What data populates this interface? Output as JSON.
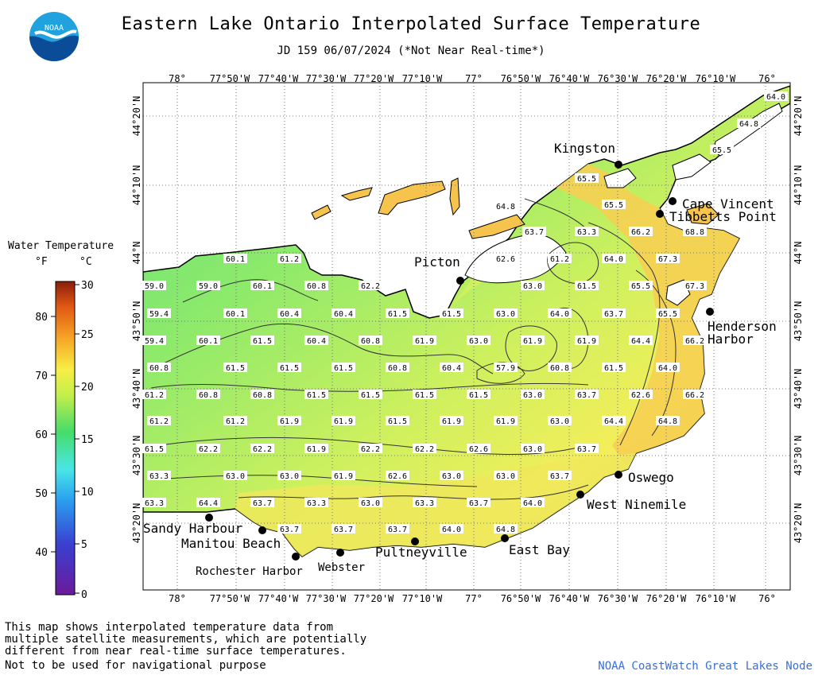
{
  "header": {
    "title": "Eastern Lake Ontario Interpolated Surface Temperature",
    "subtitle": "JD 159 06/07/2024 (*Not Near Real-time*)",
    "logo_text": "NOAA"
  },
  "legend": {
    "title": "Water Temperature",
    "unit_f": "°F",
    "unit_c": "°C",
    "f_ticks": [
      "80",
      "70",
      "60",
      "50",
      "40"
    ],
    "c_ticks": [
      "30",
      "25",
      "20",
      "15",
      "10",
      "5",
      "0"
    ]
  },
  "axes": {
    "lon_labels": [
      "78°",
      "77°50'W",
      "77°40'W",
      "77°30'W",
      "77°20'W",
      "77°10'W",
      "77°",
      "76°50'W",
      "76°40'W",
      "76°30'W",
      "76°20'W",
      "76°10'W",
      "76°"
    ],
    "lat_labels": [
      "44°20'N",
      "44°10'N",
      "44°N",
      "43°50'N",
      "43°40'N",
      "43°30'N",
      "43°20'N"
    ]
  },
  "places": [
    {
      "name": "Kingston"
    },
    {
      "name": "Cape Vincent"
    },
    {
      "name": "Tibbetts Point"
    },
    {
      "name": "Picton"
    },
    {
      "name": "Henderson"
    },
    {
      "name": "Harbor"
    },
    {
      "name": "Oswego"
    },
    {
      "name": "West Ninemile"
    },
    {
      "name": "Sandy Harbour"
    },
    {
      "name": "Manitou Beach"
    },
    {
      "name": "Rochester Harbor"
    },
    {
      "name": "Webster"
    },
    {
      "name": "Pultneyville"
    },
    {
      "name": "East Bay"
    }
  ],
  "temperature_labels": [
    "64.0",
    "64.8",
    "65.5",
    "65.5",
    "65.5",
    "64.8",
    "63.7",
    "63.3",
    "66.2",
    "68.8",
    "60.1",
    "61.2",
    "62.6",
    "61.2",
    "64.0",
    "67.3",
    "59.0",
    "59.0",
    "60.1",
    "60.8",
    "62.2",
    "63.0",
    "61.5",
    "65.5",
    "67.3",
    "59.4",
    "60.1",
    "60.4",
    "60.4",
    "61.5",
    "61.5",
    "63.0",
    "64.0",
    "63.7",
    "65.5",
    "59.4",
    "60.1",
    "61.5",
    "60.4",
    "60.8",
    "61.9",
    "63.0",
    "61.9",
    "61.9",
    "64.4",
    "66.2",
    "60.8",
    "61.5",
    "61.5",
    "61.5",
    "60.8",
    "60.4",
    "57.9",
    "60.8",
    "61.5",
    "64.0",
    "61.2",
    "60.8",
    "60.8",
    "61.5",
    "61.5",
    "61.5",
    "61.5",
    "63.0",
    "63.7",
    "62.6",
    "66.2",
    "61.2",
    "61.2",
    "61.9",
    "61.9",
    "61.5",
    "61.9",
    "61.9",
    "63.0",
    "64.4",
    "64.8",
    "61.5",
    "62.2",
    "62.2",
    "61.9",
    "62.2",
    "62.2",
    "62.6",
    "63.0",
    "63.7",
    "63.3",
    "63.0",
    "63.0",
    "61.9",
    "62.6",
    "63.0",
    "63.0",
    "63.7",
    "63.3",
    "64.4",
    "63.7",
    "63.3",
    "63.0",
    "63.3",
    "63.7",
    "64.0",
    "63.7",
    "63.7",
    "63.7",
    "64.0",
    "64.8"
  ],
  "footer": {
    "note_lines": [
      "This map shows interpolated temperature data from",
      "multiple satellite measurements, which are potentially",
      "different from near real-time surface temperatures."
    ],
    "disclaimer": "Not to be used for navigational purpose",
    "credit": "NOAA CoastWatch Great Lakes Node"
  },
  "colors": {
    "land": "#ffffff",
    "cold_water": "#5fe07a",
    "mid_water": "#b6ee60",
    "warm_water": "#f3ee5a",
    "hot_water": "#f6c34c",
    "contour": "#333333",
    "credit_text": "#3a6fd8"
  }
}
